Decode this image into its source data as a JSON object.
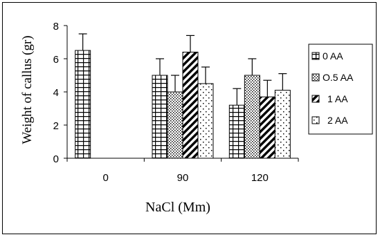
{
  "chart_data": {
    "type": "bar",
    "title": "",
    "xlabel": "NaCl (Mm)",
    "ylabel": "Weight of callus (gr)",
    "categories": [
      "0",
      "90",
      "120"
    ],
    "ylim": [
      0,
      8
    ],
    "yticks": [
      "0",
      "2",
      "4",
      "6",
      "8"
    ],
    "grid": false,
    "legend_position": "right",
    "error_bars": true,
    "series": [
      {
        "name": "0 AA",
        "pattern": "grid",
        "values": [
          6.5,
          5.0,
          3.2
        ],
        "errors": [
          1.0,
          1.0,
          1.0
        ]
      },
      {
        "name": "O.5 AA",
        "pattern": "dots",
        "values": [
          null,
          4.0,
          5.0
        ],
        "errors": [
          null,
          1.0,
          1.0
        ]
      },
      {
        "name": "1 AA",
        "pattern": "diagonal",
        "values": [
          null,
          6.4,
          3.7
        ],
        "errors": [
          null,
          1.0,
          1.0
        ]
      },
      {
        "name": "2 AA",
        "pattern": "sparse-dots",
        "values": [
          null,
          4.5,
          4.1
        ],
        "errors": [
          null,
          1.0,
          1.0
        ]
      }
    ],
    "colors": {
      "bar_fill": "#ffffff",
      "ink": "#000000"
    }
  }
}
